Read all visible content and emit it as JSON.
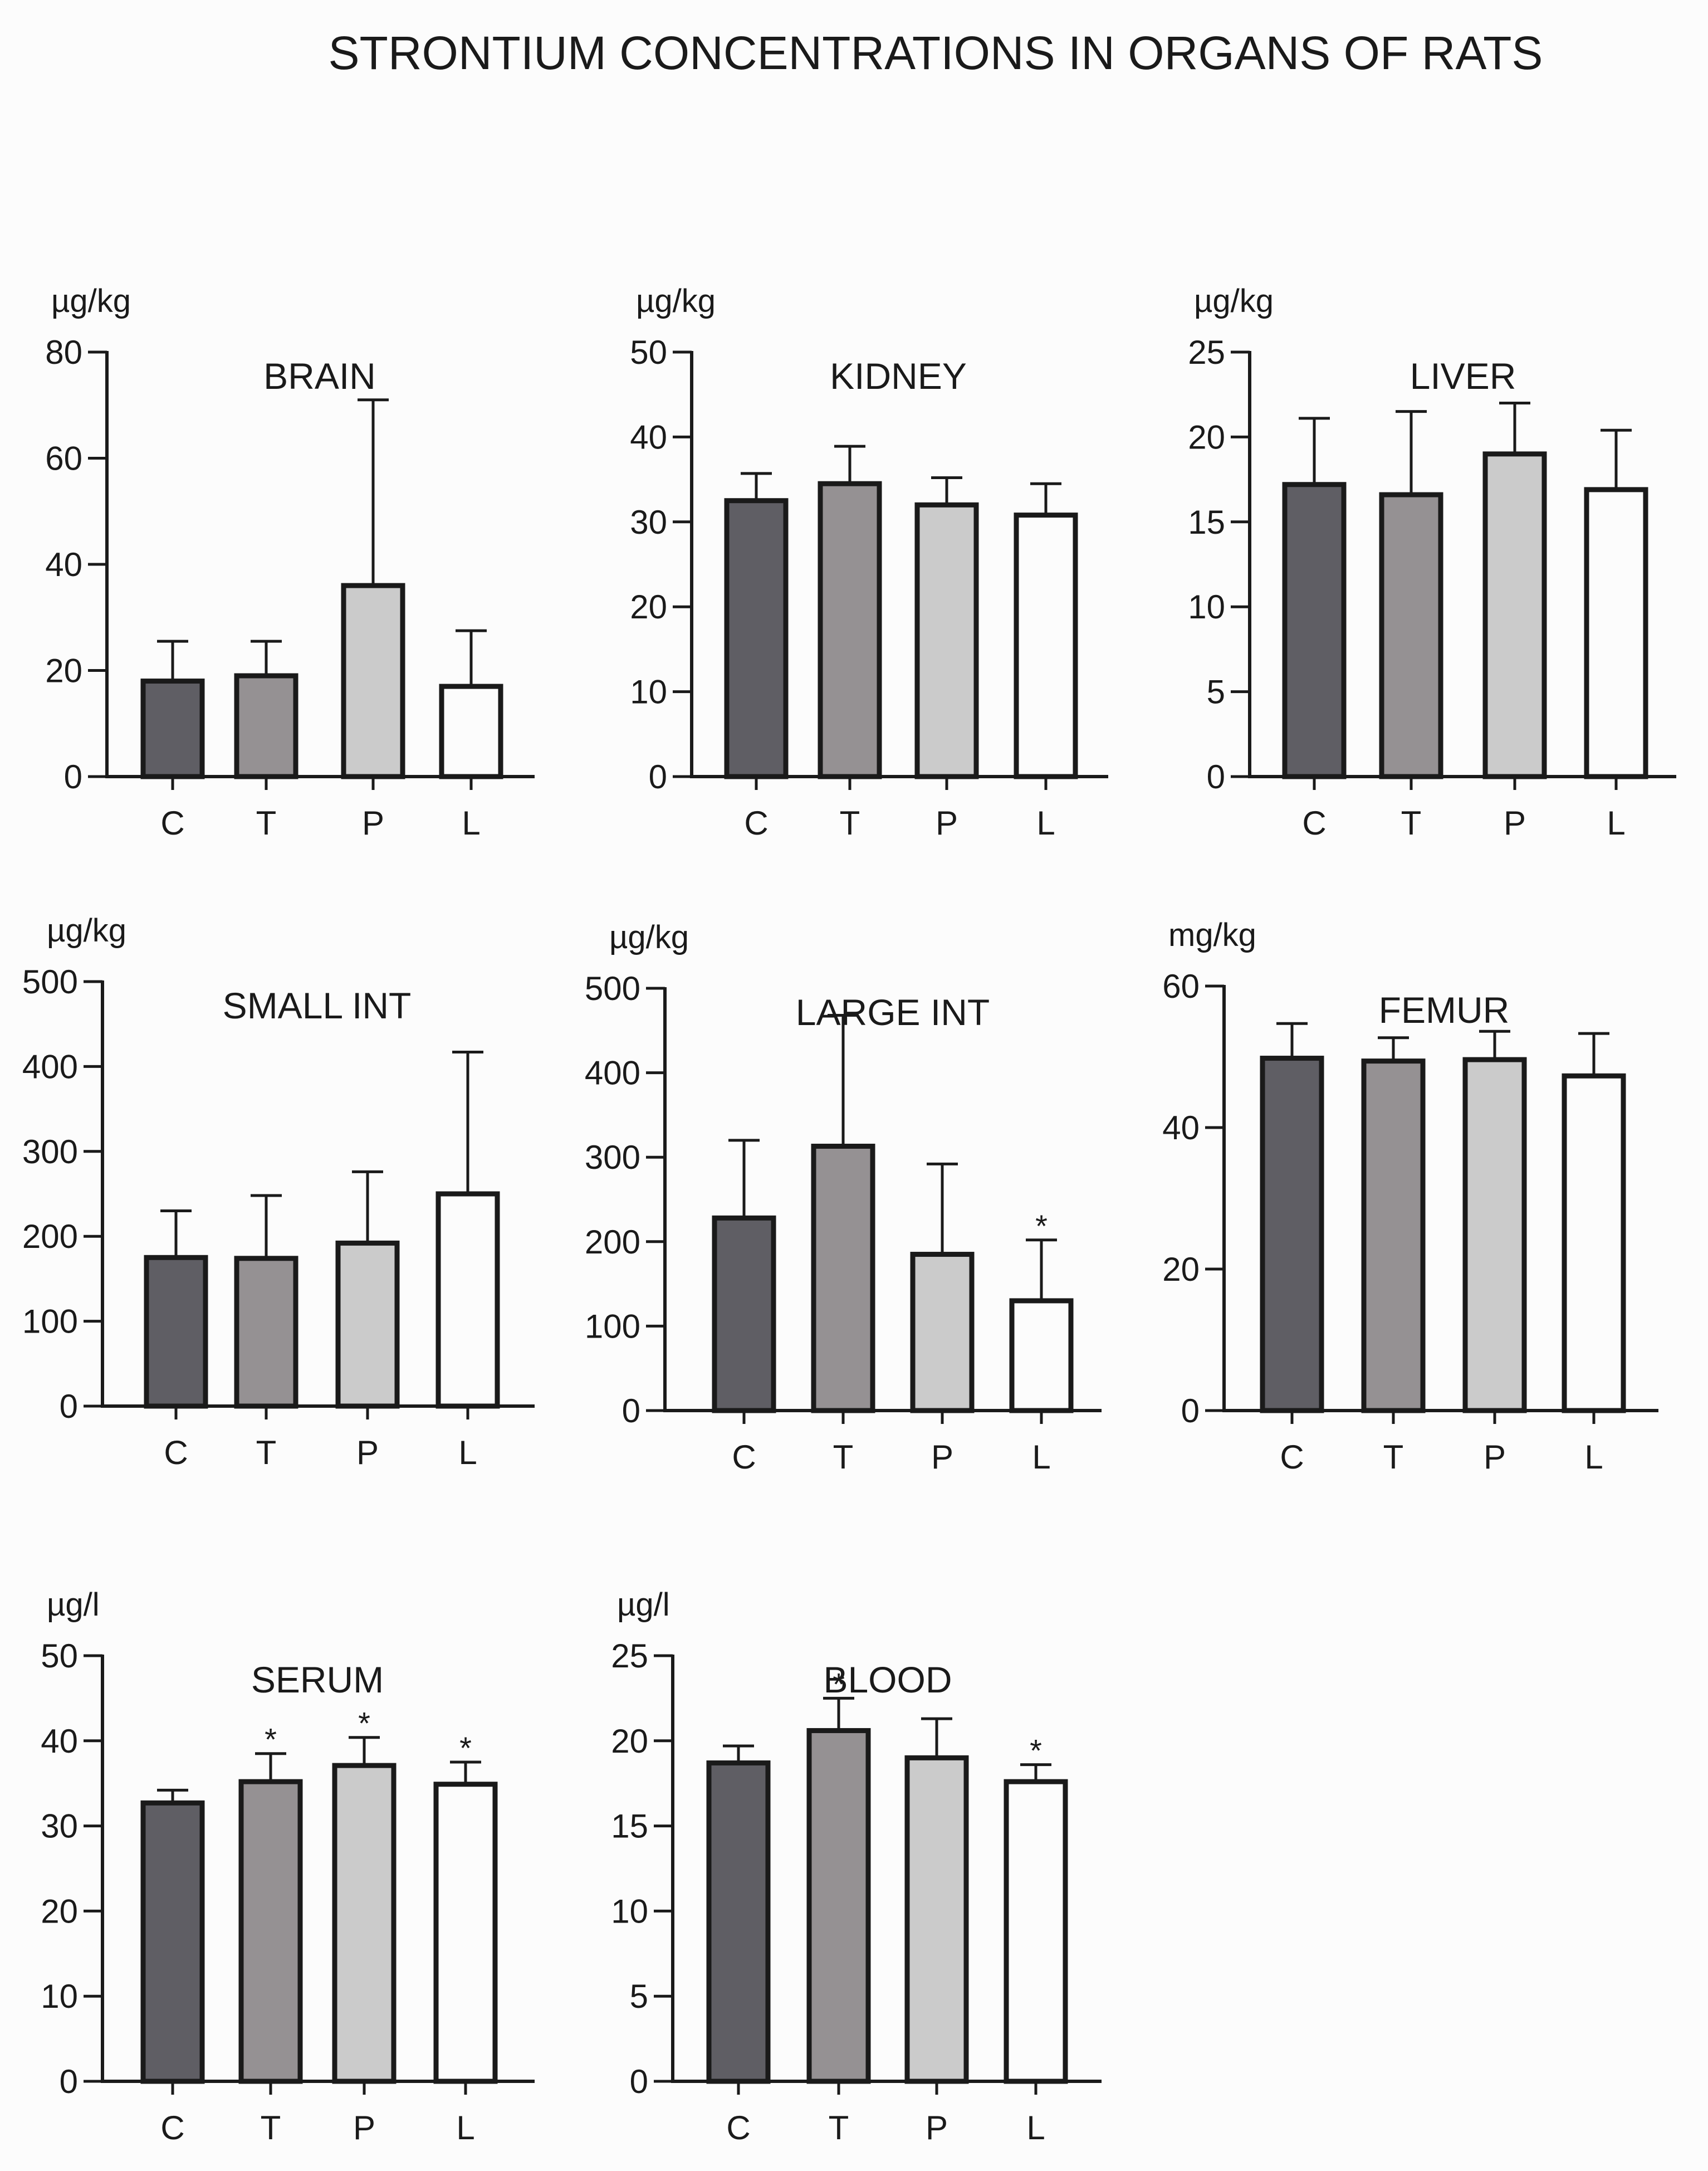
{
  "title": "STRONTIUM CONCENTRATIONS IN ORGANS OF RATS",
  "colors": {
    "C": "#5f5e64",
    "T": "#959193",
    "P": "#cbcbcb",
    "L": "#fcfcfc",
    "outline": "#1a1a1a"
  },
  "chart_data": [
    {
      "type": "bar",
      "title": "BRAIN",
      "unit": "µg/kg",
      "categories": [
        "C",
        "T",
        "P",
        "L"
      ],
      "values": [
        18,
        19,
        36,
        17
      ],
      "errors": [
        7.5,
        6.5,
        35,
        10.5
      ],
      "significance": [
        "",
        "",
        "",
        ""
      ],
      "ylim": [
        0,
        80
      ],
      "yticks": [
        0,
        20,
        40,
        60,
        80
      ]
    },
    {
      "type": "bar",
      "title": "KIDNEY",
      "unit": "µg/kg",
      "categories": [
        "C",
        "T",
        "P",
        "L"
      ],
      "values": [
        32.5,
        34.5,
        32,
        30.8
      ],
      "errors": [
        3.2,
        4.4,
        3.2,
        3.7
      ],
      "significance": [
        "",
        "",
        "",
        ""
      ],
      "ylim": [
        0,
        50
      ],
      "yticks": [
        0,
        10,
        20,
        30,
        40,
        50
      ]
    },
    {
      "type": "bar",
      "title": "LIVER",
      "unit": "µg/kg",
      "categories": [
        "C",
        "T",
        "P",
        "L"
      ],
      "values": [
        17.2,
        16.6,
        19,
        16.9
      ],
      "errors": [
        3.9,
        4.9,
        3,
        3.5
      ],
      "significance": [
        "",
        "",
        "",
        ""
      ],
      "ylim": [
        0,
        25
      ],
      "yticks": [
        0,
        5,
        10,
        15,
        20,
        25
      ]
    },
    {
      "type": "bar",
      "title": "SMALL INT",
      "unit": "µg/kg",
      "categories": [
        "C",
        "T",
        "P",
        "L"
      ],
      "values": [
        175,
        174,
        192,
        250
      ],
      "errors": [
        55,
        74,
        84,
        167
      ],
      "significance": [
        "",
        "",
        "",
        ""
      ],
      "ylim": [
        0,
        500
      ],
      "yticks": [
        0,
        100,
        200,
        300,
        400,
        500
      ]
    },
    {
      "type": "bar",
      "title": "LARGE INT",
      "unit": "µg/kg",
      "categories": [
        "C",
        "T",
        "P",
        "L"
      ],
      "values": [
        228,
        313,
        185,
        130
      ],
      "errors": [
        92,
        155,
        107,
        72
      ],
      "significance": [
        "",
        "",
        "",
        "*"
      ],
      "ylim": [
        0,
        500
      ],
      "yticks": [
        0,
        100,
        200,
        300,
        400,
        500
      ]
    },
    {
      "type": "bar",
      "title": "FEMUR",
      "unit": "mg/kg",
      "categories": [
        "C",
        "T",
        "P",
        "L"
      ],
      "values": [
        49.8,
        49.4,
        49.6,
        47.3
      ],
      "errors": [
        4.9,
        3.3,
        4,
        6
      ],
      "significance": [
        "",
        "",
        "",
        ""
      ],
      "ylim": [
        0,
        60
      ],
      "yticks": [
        0,
        20,
        40,
        60
      ]
    },
    {
      "type": "bar",
      "title": "SERUM",
      "unit": "µg/l",
      "categories": [
        "C",
        "T",
        "P",
        "L"
      ],
      "values": [
        32.7,
        35.2,
        37.1,
        34.9
      ],
      "errors": [
        1.5,
        3.3,
        3.3,
        2.6
      ],
      "significance": [
        "",
        "*",
        "*",
        "*"
      ],
      "ylim": [
        0,
        50
      ],
      "yticks": [
        0,
        10,
        20,
        30,
        40,
        50
      ]
    },
    {
      "type": "bar",
      "title": "BLOOD",
      "unit": "µg/l",
      "categories": [
        "C",
        "T",
        "P",
        "L"
      ],
      "values": [
        18.7,
        20.6,
        19,
        17.6
      ],
      "errors": [
        1,
        1.9,
        2.3,
        1
      ],
      "significance": [
        "",
        "*",
        "",
        "*"
      ],
      "ylim": [
        0,
        25
      ],
      "yticks": [
        0,
        5,
        10,
        15,
        20,
        25
      ]
    }
  ]
}
